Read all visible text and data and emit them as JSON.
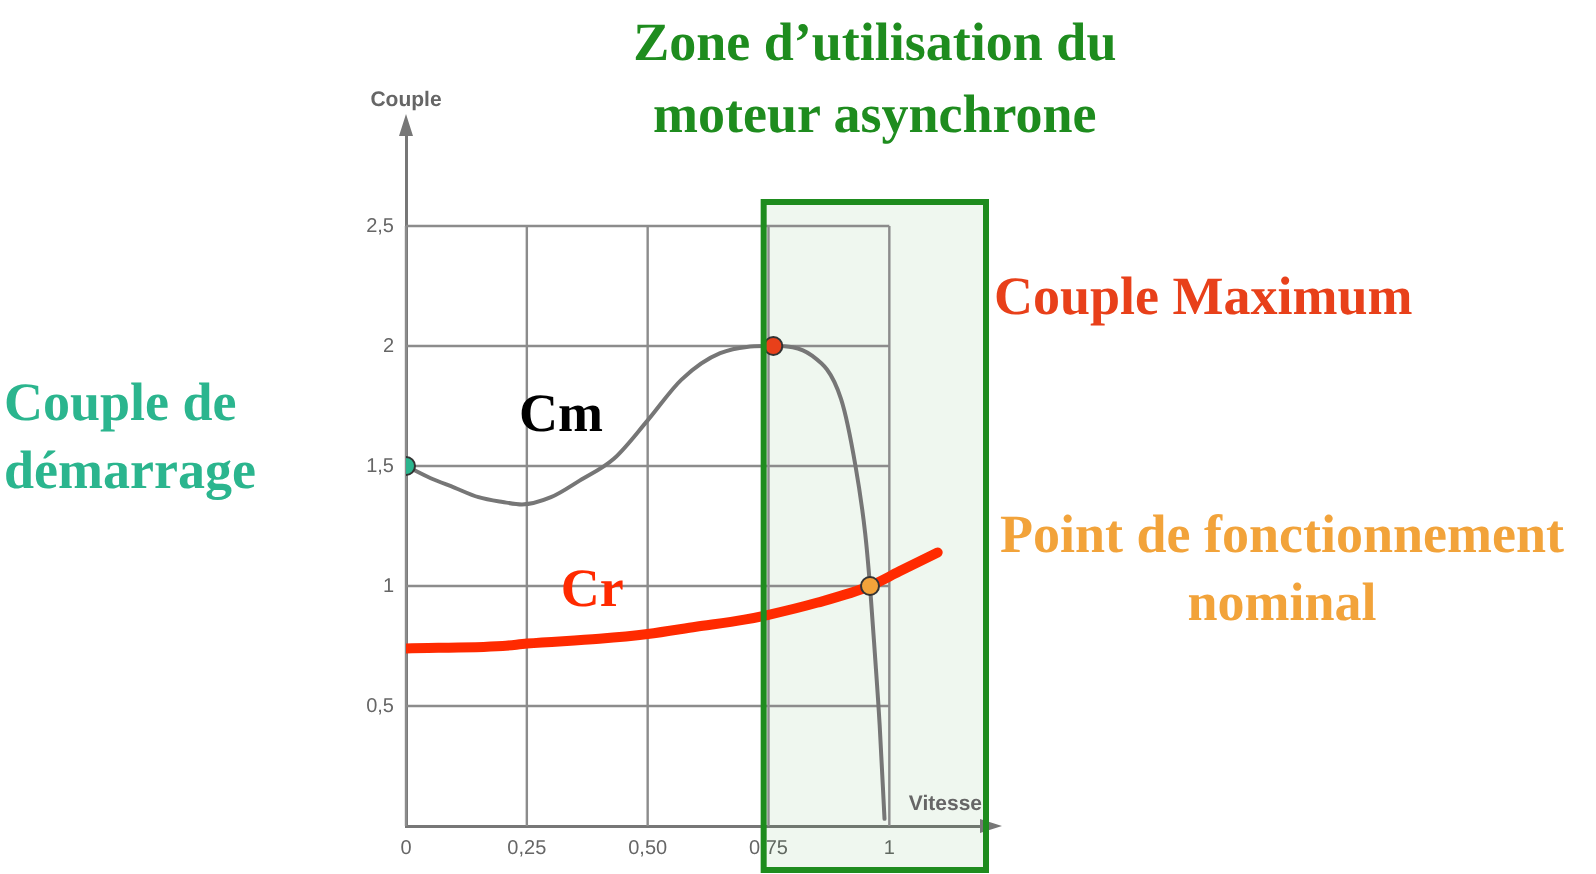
{
  "chart_data": {
    "type": "line",
    "xlabel": "Vitesse",
    "ylabel": "Couple",
    "xlim": [
      0,
      1.2
    ],
    "ylim": [
      0,
      2.9
    ],
    "xticks": [
      0,
      {
        "value": 0.25,
        "label": "0,25"
      },
      {
        "value": 0.5,
        "label": "0,50"
      },
      {
        "value": 0.75,
        "label": "0,75"
      },
      1
    ],
    "yticks": [
      {
        "value": 0.5,
        "label": "0,5"
      },
      1,
      {
        "value": 1.5,
        "label": "1,5"
      },
      2,
      {
        "value": 2.5,
        "label": "2,5"
      }
    ],
    "grid": true,
    "series": [
      {
        "name": "Cm",
        "color": "#767676",
        "marker": "none",
        "x": [
          0,
          0.05,
          0.1,
          0.15,
          0.2,
          0.24,
          0.3,
          0.36,
          0.43,
          0.5,
          0.57,
          0.65,
          0.76,
          0.84,
          0.9,
          0.93,
          0.95,
          0.96,
          0.97,
          0.98,
          0.99
        ],
        "values": [
          1.5,
          1.45,
          1.41,
          1.37,
          1.35,
          1.34,
          1.37,
          1.44,
          1.53,
          1.69,
          1.86,
          1.97,
          2.0,
          1.96,
          1.78,
          1.5,
          1.22,
          1.0,
          0.72,
          0.42,
          0.03
        ]
      },
      {
        "name": "Cr",
        "color": "#ff2a00",
        "marker": "none",
        "x": [
          0,
          0.2,
          0.25,
          0.4,
          0.5,
          0.6,
          0.7,
          0.75,
          0.85,
          0.96,
          1.02,
          1.1
        ],
        "values": [
          0.74,
          0.75,
          0.76,
          0.78,
          0.8,
          0.83,
          0.86,
          0.88,
          0.93,
          1.0,
          1.06,
          1.14
        ]
      },
      {
        "type": "scatter",
        "marker": "circle",
        "x": [
          0,
          0.76,
          0.96
        ],
        "values": [
          1.5,
          2,
          1
        ],
        "colors": [
          "#2bb58e",
          "#e8401a",
          "#f2a33a"
        ]
      }
    ],
    "bands": [
      {
        "axis": "x",
        "from": 0.74,
        "to": 1.2,
        "label": "Zone d’utilisation du moteur asynchrone",
        "color": "#1e8c1e"
      }
    ],
    "annotations": [
      {
        "text": "Couple de démarrage",
        "x": 0,
        "y": 1.5
      },
      "Couple Maximum",
      {
        "text": "Point de fonctionnement nominal",
        "x": 0.96,
        "y": 1
      }
    ]
  }
}
